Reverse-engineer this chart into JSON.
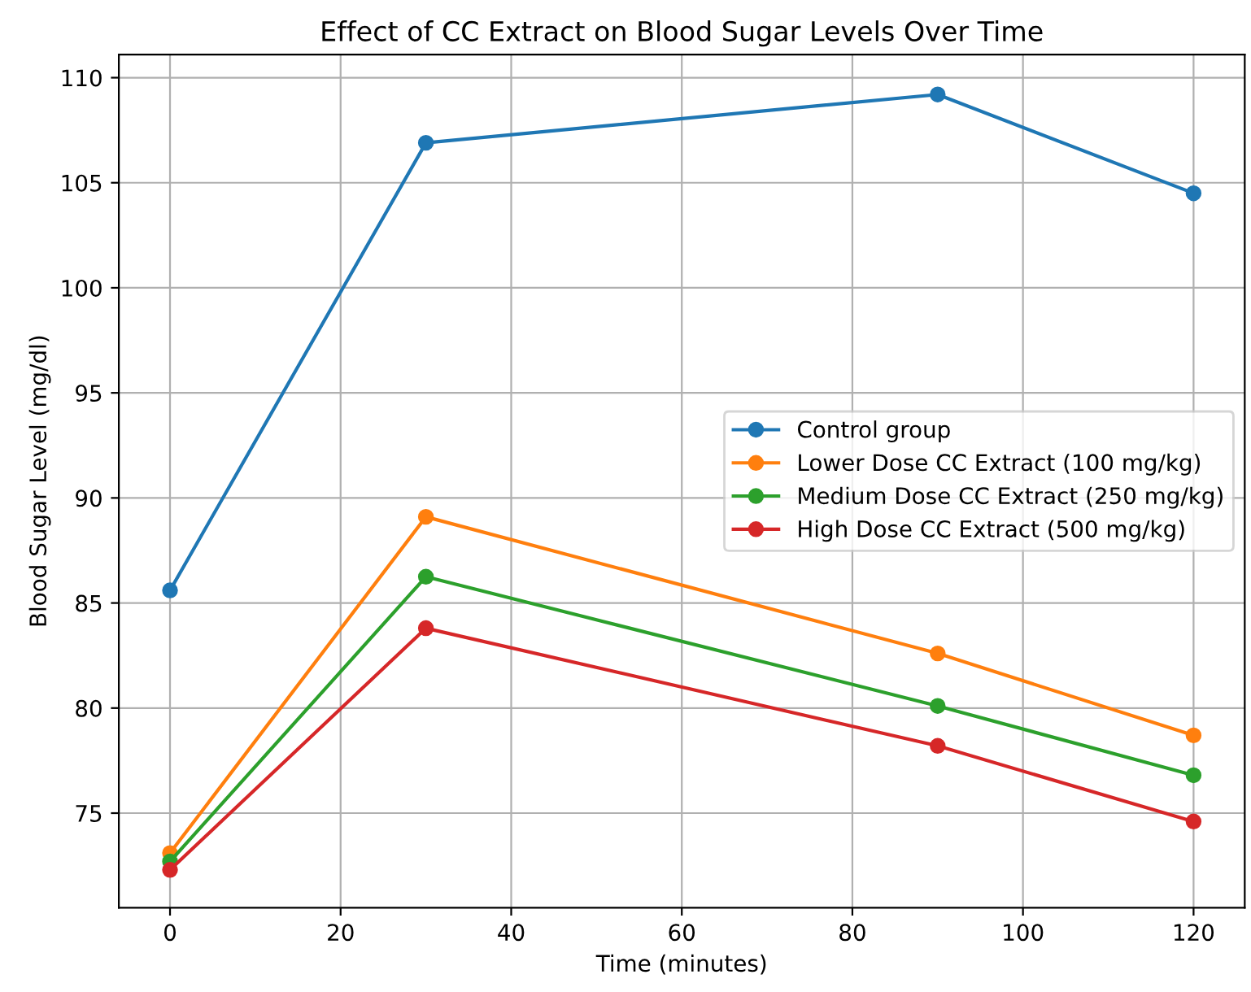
{
  "chart_data": {
    "type": "line",
    "title": "Effect of CC Extract on Blood Sugar Levels Over Time",
    "xlabel": "Time (minutes)",
    "ylabel": "Blood Sugar Level (mg/dl)",
    "x": [
      0,
      30,
      90,
      120
    ],
    "series": [
      {
        "name": "Control group",
        "color": "#1f77b4",
        "values": [
          85.6,
          106.9,
          109.2,
          104.5
        ]
      },
      {
        "name": "Lower Dose CC Extract (100 mg/kg)",
        "color": "#ff7f0e",
        "values": [
          73.1,
          89.1,
          82.6,
          78.7
        ]
      },
      {
        "name": "Medium Dose CC Extract (250 mg/kg)",
        "color": "#2ca02c",
        "values": [
          72.7,
          86.25,
          80.1,
          76.8
        ]
      },
      {
        "name": "High Dose CC Extract (500 mg/kg)",
        "color": "#d62728",
        "values": [
          72.3,
          83.8,
          78.2,
          74.6
        ]
      }
    ],
    "xlim": [
      -6,
      126
    ],
    "ylim": [
      70.5,
      111.1
    ],
    "xticks": [
      0,
      20,
      40,
      60,
      80,
      100,
      120
    ],
    "yticks": [
      75,
      80,
      85,
      90,
      95,
      100,
      105,
      110
    ],
    "grid": true,
    "legend": "center right",
    "marker": "circle",
    "line_style": "solid"
  }
}
